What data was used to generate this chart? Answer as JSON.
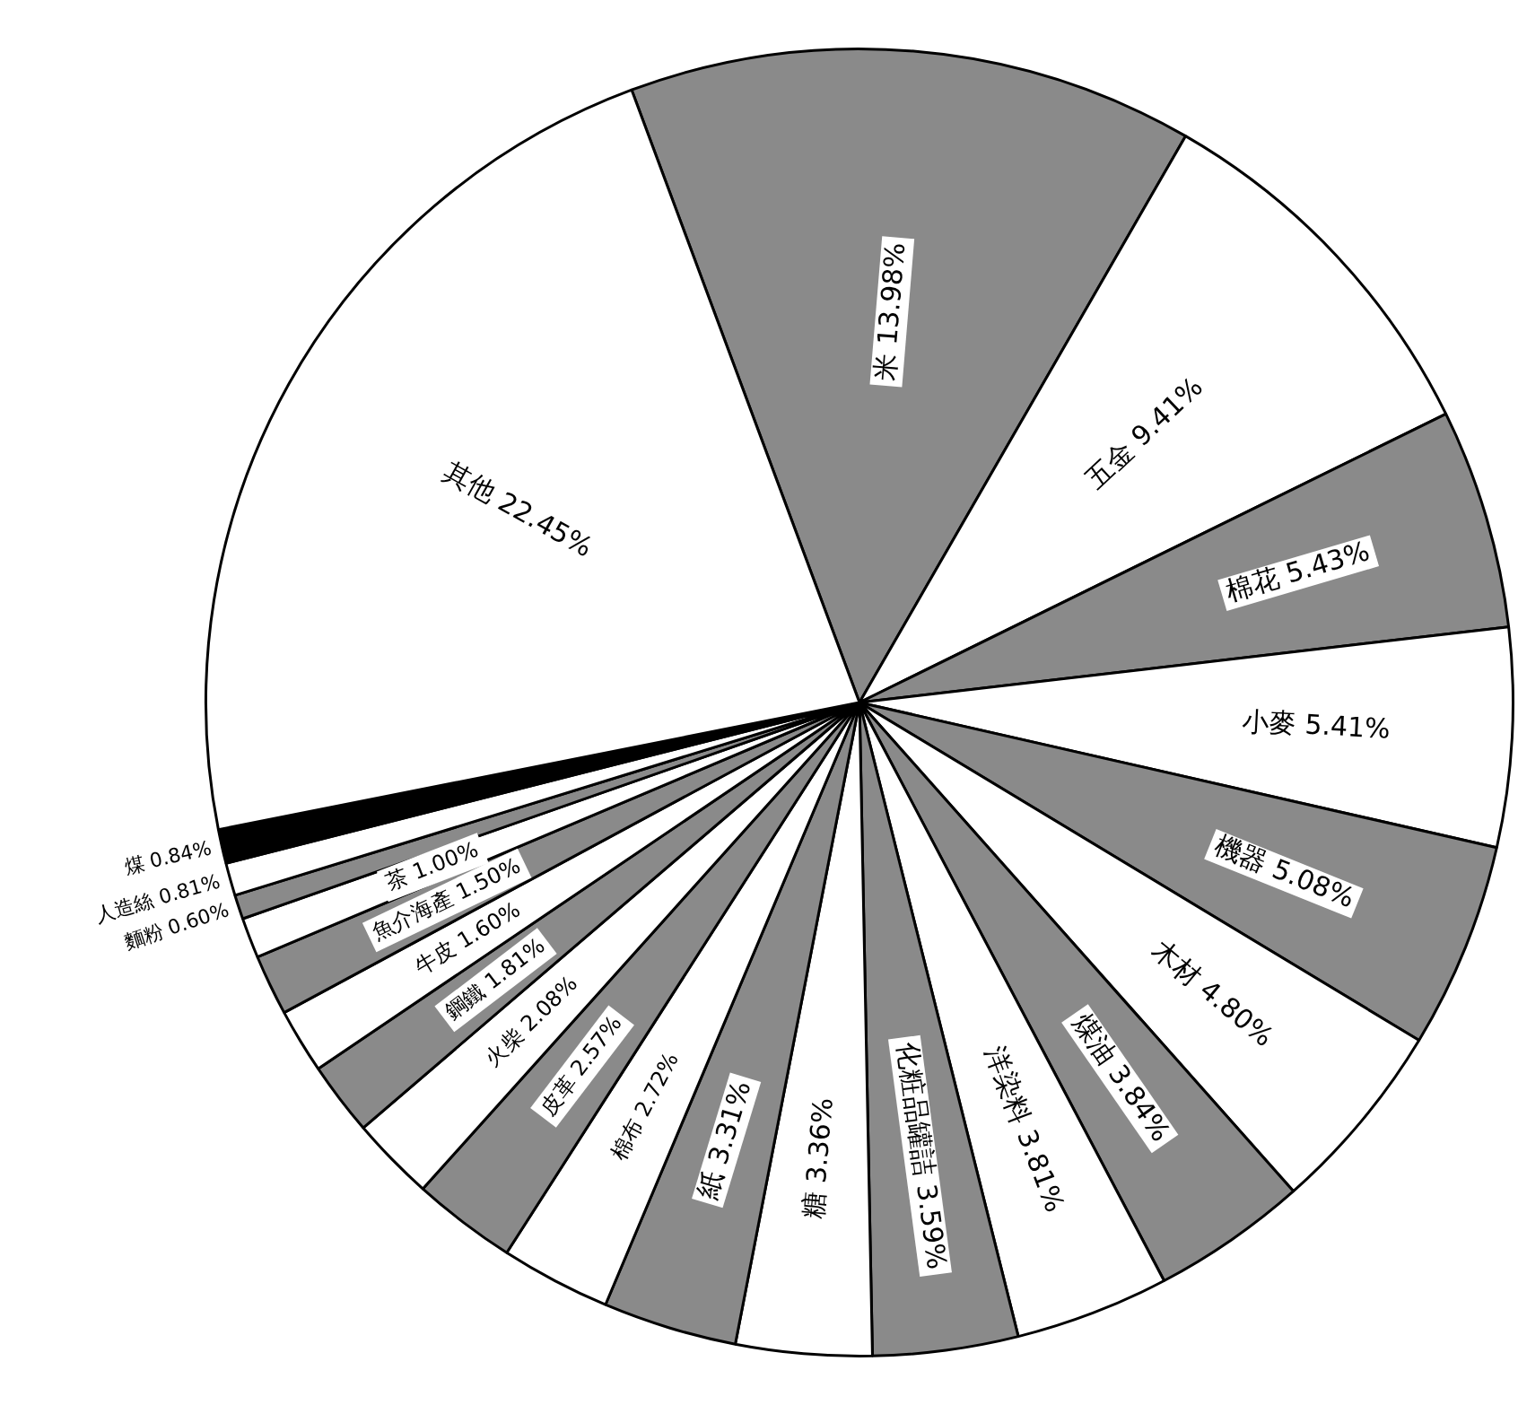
{
  "chart_data": {
    "type": "pie",
    "categories": [
      "米",
      "五金",
      "棉花",
      "小麥",
      "機器",
      "木材",
      "煤油",
      "洋染料",
      "化粧品罐詰",
      "糖",
      "紙",
      "棉布",
      "皮革",
      "火柴",
      "鋼鐵",
      "牛皮",
      "魚介海產",
      "茶",
      "麵粉",
      "人造絲",
      "煤",
      "其他"
    ],
    "values": [
      13.98,
      9.41,
      5.43,
      5.41,
      5.08,
      4.8,
      3.84,
      3.81,
      3.59,
      3.36,
      3.31,
      2.72,
      2.57,
      2.08,
      1.81,
      1.6,
      1.5,
      1.0,
      0.6,
      0.81,
      0.84,
      22.45
    ],
    "value_labels": [
      "13.98%",
      "9.41%",
      "5.43%",
      "5.41%",
      "5.08%",
      "4.80%",
      "3.84%",
      "3.81%",
      "3.59%",
      "3.36%",
      "3.31%",
      "2.72%",
      "2.57%",
      "2.08%",
      "1.81%",
      "1.60%",
      "1.50%",
      "1.00%",
      "0.60%",
      "0.81%",
      "0.84%",
      "22.45%"
    ],
    "colors": [
      "#8a8a8a",
      "#ffffff",
      "#8a8a8a",
      "#ffffff",
      "#8a8a8a",
      "#ffffff",
      "#8a8a8a",
      "#ffffff",
      "#8a8a8a",
      "#ffffff",
      "#8a8a8a",
      "#ffffff",
      "#8a8a8a",
      "#ffffff",
      "#8a8a8a",
      "#ffffff",
      "#8a8a8a",
      "#ffffff",
      "#8a8a8a",
      "#ffffff",
      "#000000",
      "#ffffff"
    ]
  }
}
